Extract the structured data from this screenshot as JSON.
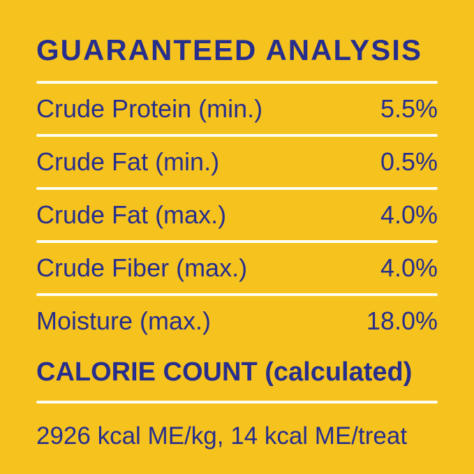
{
  "label": {
    "title": "GUARANTEED ANALYSIS",
    "rows": [
      {
        "name": "Crude Protein (min.)",
        "value": "5.5%"
      },
      {
        "name": "Crude Fat (min.)",
        "value": "0.5%"
      },
      {
        "name": "Crude Fat (max.)",
        "value": "4.0%"
      },
      {
        "name": "Crude Fiber (max.)",
        "value": "4.0%"
      },
      {
        "name": "Moisture (max.)",
        "value": "18.0%"
      }
    ],
    "calorie_heading": "CALORIE COUNT (calculated)",
    "calorie_text": "2926 kcal ME/kg, 14 kcal ME/treat",
    "colors": {
      "background": "#F6C31E",
      "text": "#272E8C",
      "divider": "#FFFEF2"
    }
  }
}
